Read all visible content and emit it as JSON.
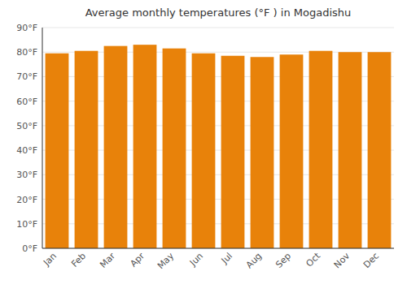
{
  "chart_data": {
    "type": "bar",
    "title": "Average monthly temperatures (°F ) in Mogadishu",
    "categories": [
      "Jan",
      "Feb",
      "Mar",
      "Apr",
      "May",
      "Jun",
      "Jul",
      "Aug",
      "Sep",
      "Oct",
      "Nov",
      "Dec"
    ],
    "values": [
      79.5,
      80.5,
      82.5,
      83.0,
      81.5,
      79.5,
      78.5,
      78.0,
      79.0,
      80.5,
      80.0,
      80.0
    ],
    "color": "#E8820A",
    "ylim": [
      0,
      90
    ],
    "yticks": [
      {
        "value": 0,
        "label": "0°F"
      },
      {
        "value": 10,
        "label": "10°F"
      },
      {
        "value": 20,
        "label": "20°F"
      },
      {
        "value": 30,
        "label": "30°F"
      },
      {
        "value": 40,
        "label": "40°F"
      },
      {
        "value": 50,
        "label": "50°F"
      },
      {
        "value": 60,
        "label": "60°F"
      },
      {
        "value": 70,
        "label": "70°F"
      },
      {
        "value": 80,
        "label": "80°F"
      },
      {
        "value": 90,
        "label": "90°F"
      }
    ],
    "grid": true
  }
}
